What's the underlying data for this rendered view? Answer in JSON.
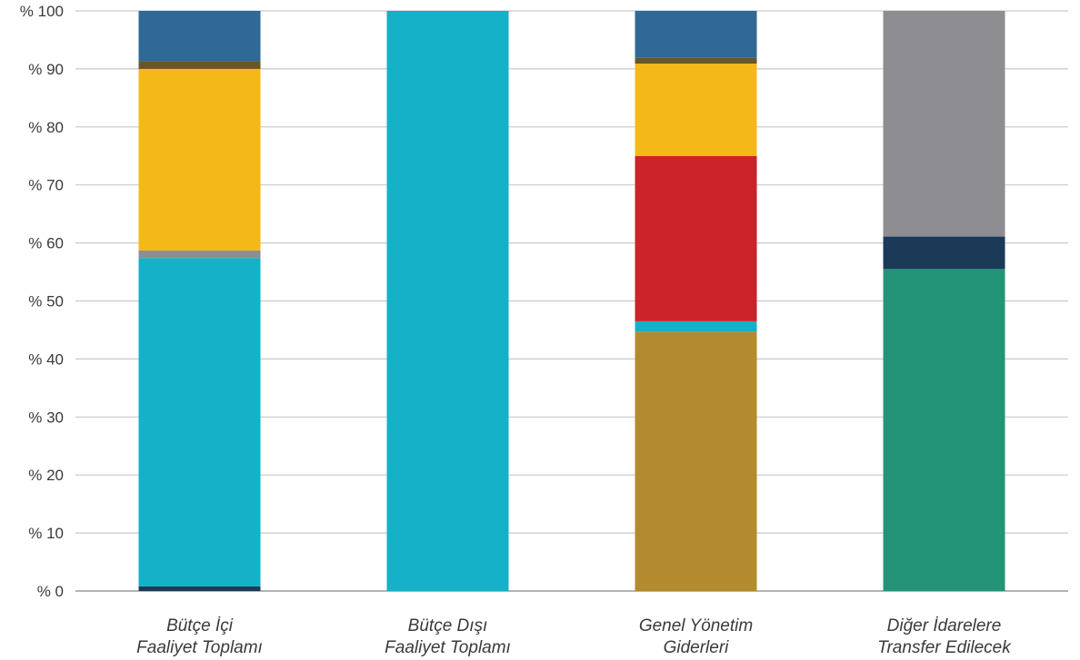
{
  "chart_data": {
    "type": "bar",
    "stacked": true,
    "ylim": [
      0,
      100
    ],
    "yticks": [
      0,
      10,
      20,
      30,
      40,
      50,
      60,
      70,
      80,
      90,
      100
    ],
    "ytick_labels": [
      "% 0",
      "% 10",
      "% 20",
      "% 30",
      "% 40",
      "% 50",
      "% 60",
      "% 70",
      "% 80",
      "% 90",
      "% 100"
    ],
    "grid": true,
    "categories": [
      [
        "Bütçe İçi",
        "Faaliyet Toplamı"
      ],
      [
        "Bütçe Dışı",
        "Faaliyet Toplamı"
      ],
      [
        "Genel Yönetim",
        "Giderleri"
      ],
      [
        "Diğer İdarelere",
        "Transfer Edilecek"
      ]
    ],
    "series": [
      {
        "color": "#1b3a57",
        "values": [
          0.8,
          0,
          0,
          0
        ]
      },
      {
        "color": "#b48a2f",
        "values": [
          0,
          0,
          44.7,
          0
        ]
      },
      {
        "color": "#249479",
        "values": [
          0,
          0,
          0,
          55.5
        ]
      },
      {
        "color": "#1b3a57",
        "values": [
          0,
          0,
          0,
          5.6
        ]
      },
      {
        "color": "#14b1c8",
        "values": [
          56.6,
          100,
          1.8,
          0
        ]
      },
      {
        "color": "#8e8e92",
        "values": [
          1.3,
          0,
          0,
          38.9
        ]
      },
      {
        "color": "#cc2229",
        "values": [
          0,
          0,
          28.5,
          0
        ]
      },
      {
        "color": "#f4b918",
        "values": [
          31.3,
          0,
          15.9,
          0
        ]
      },
      {
        "color": "#6a5624",
        "values": [
          1.3,
          0,
          1.0,
          0
        ]
      },
      {
        "color": "#306996",
        "values": [
          8.7,
          0,
          8.1,
          0
        ]
      }
    ]
  }
}
